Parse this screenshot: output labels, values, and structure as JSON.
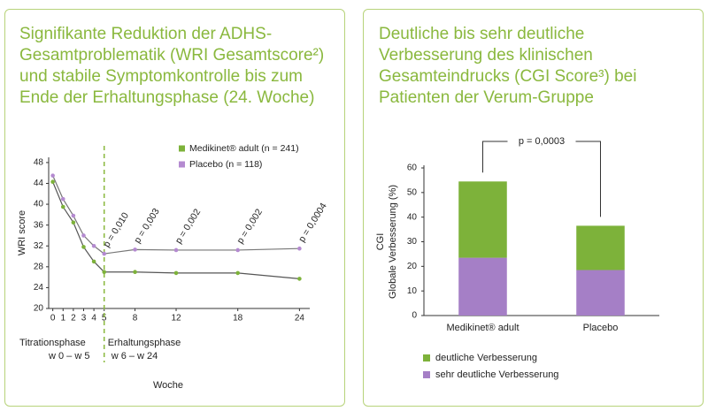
{
  "chart_data": [
    {
      "type": "line",
      "title": "Signifikante Reduktion der ADHS-Gesamtproblematik (WRI Gesamtscore²) und stabile Symptomkontrolle bis zum Ende der Erhaltungsphase (24. Woche)",
      "ylabel": "WRI score",
      "xlabel": "Woche",
      "x": [
        0,
        1,
        2,
        3,
        4,
        5,
        8,
        12,
        18,
        24
      ],
      "series": [
        {
          "name": "Medikinet® adult (n = 241)",
          "color": "#7db23a",
          "values": [
            44.3,
            39.5,
            36.5,
            31.8,
            29,
            27,
            27,
            26.8,
            26.8,
            25.7
          ]
        },
        {
          "name": "Placebo (n = 118)",
          "color": "#b48ad0",
          "values": [
            45.5,
            41,
            37.8,
            34,
            32,
            30.5,
            31.3,
            31.2,
            31.2,
            31.5
          ]
        }
      ],
      "xlim": [
        -0.4,
        25
      ],
      "xticks": [
        0,
        1,
        2,
        3,
        4,
        5,
        8,
        12,
        18,
        24
      ],
      "ylim": [
        20,
        49
      ],
      "yticks": [
        20,
        24,
        28,
        32,
        36,
        40,
        44,
        48
      ],
      "phase_divider": 5,
      "annotations": [
        {
          "x": 5,
          "label": "p = 0,010"
        },
        {
          "x": 8,
          "label": "p = 0,003"
        },
        {
          "x": 12,
          "label": "p = 0,002"
        },
        {
          "x": 18,
          "label": "p = 0,002"
        },
        {
          "x": 24,
          "label": "p = 0,0004"
        }
      ],
      "phases": [
        {
          "name": "Titrationsphase",
          "range": "w 0 – w 5"
        },
        {
          "name": "Erhaltungsphase",
          "range": "w 6 – w 24"
        }
      ]
    },
    {
      "type": "bar",
      "title": "Deutliche bis sehr deutliche Verbesserung des klinischen Gesamteindrucks (CGI Score³) bei Patienten der Verum-Gruppe",
      "ylabel": [
        "CGI",
        "Globale Verbesserung (%)"
      ],
      "categories": [
        "Medikinet® adult",
        "Placebo"
      ],
      "series": [
        {
          "name": "sehr deutliche Verbesserung",
          "color": "#a57fc6",
          "values": [
            23.5,
            18.5
          ]
        },
        {
          "name": "deutliche Verbesserung",
          "color": "#7db23a",
          "values": [
            31,
            18
          ]
        }
      ],
      "stacked": true,
      "ylim": [
        0,
        60
      ],
      "yticks": [
        0,
        10,
        20,
        30,
        40,
        50,
        60
      ],
      "annotation": "p = 0,0003"
    }
  ]
}
